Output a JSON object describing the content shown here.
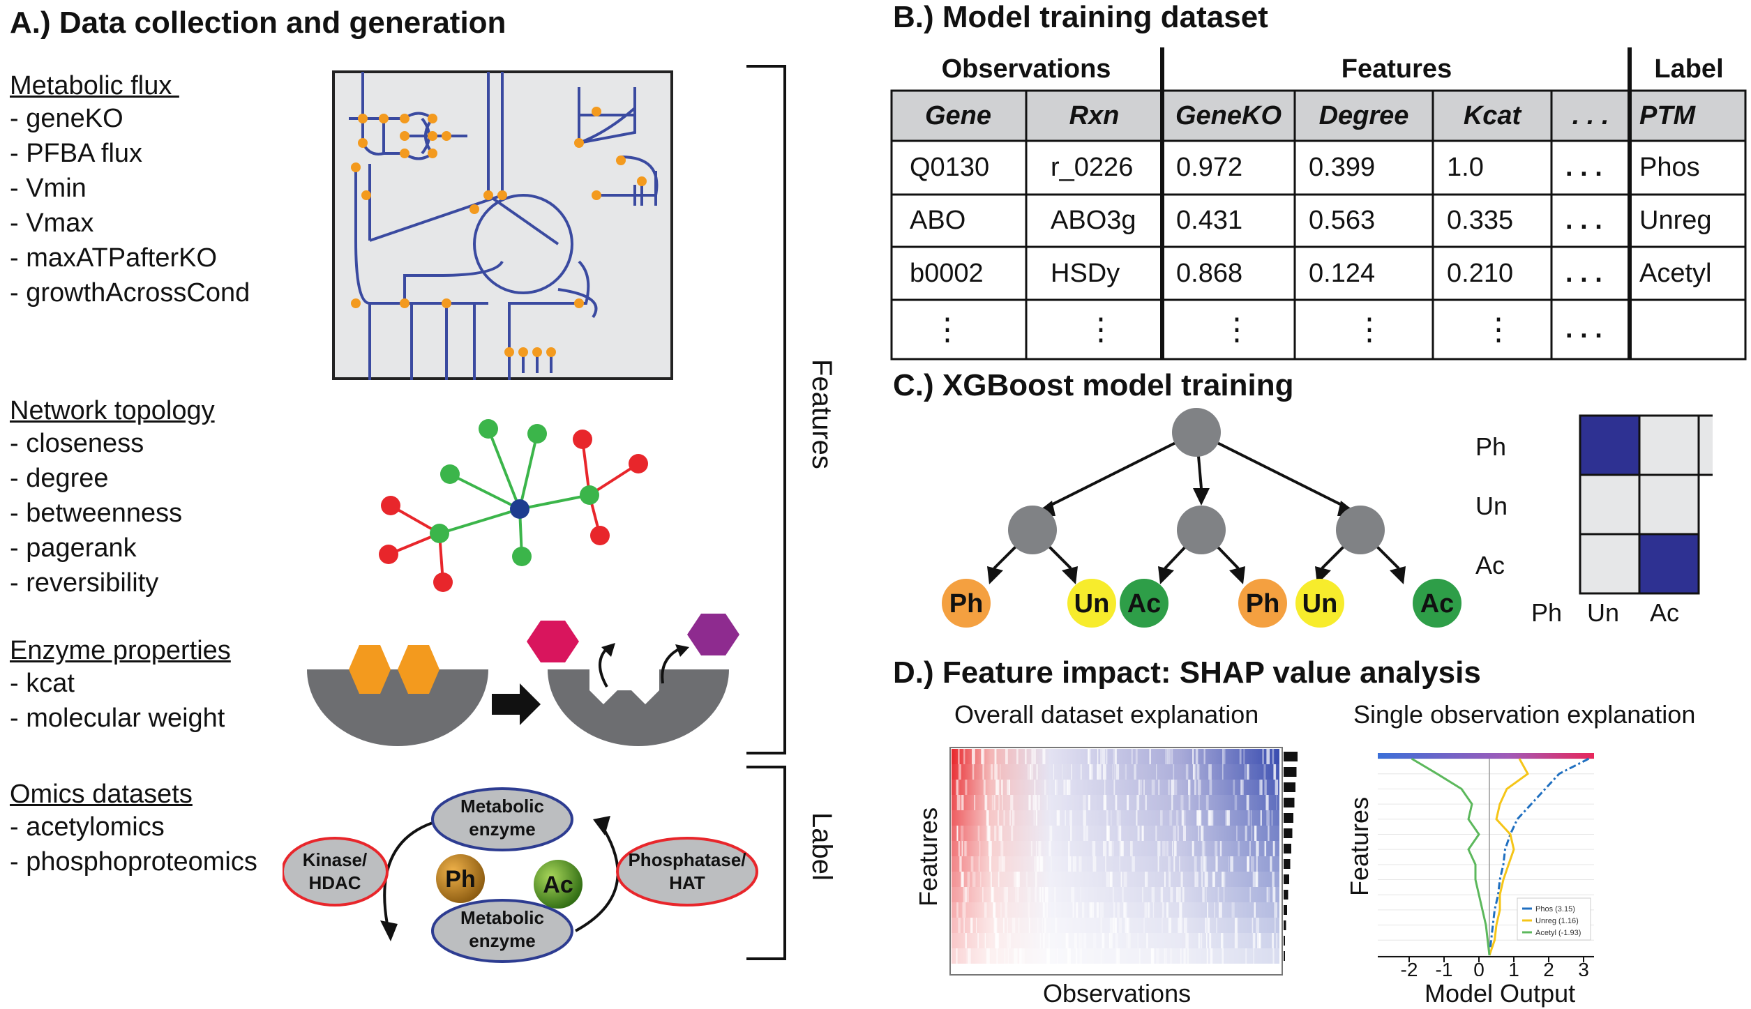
{
  "panel_a": {
    "title": "A.) Data collection and generation",
    "sections": [
      {
        "heading": "Metabolic flux ",
        "items": [
          "- geneKO",
          "- PFBA flux",
          "- Vmin",
          "- Vmax",
          "- maxATPafterKO",
          "- growthAcrossCond"
        ]
      },
      {
        "heading": "Network topology",
        "items": [
          "- closeness",
          "- degree",
          "- betweenness",
          "- pagerank",
          "- reversibility"
        ]
      },
      {
        "heading": "Enzyme properties",
        "items": [
          "- kcat",
          "- molecular weight"
        ]
      },
      {
        "heading": "Omics datasets",
        "items": [
          "- acetylomics",
          "- phosphoproteomics"
        ]
      }
    ],
    "bracket_features": "Features",
    "bracket_label": "Label",
    "cycle": {
      "enzyme_top": [
        "Metabolic",
        "enzyme"
      ],
      "enzyme_bottom": [
        "Metabolic",
        "enzyme"
      ],
      "left": [
        "Kinase/",
        "HDAC"
      ],
      "right": [
        "Phosphatase/",
        "HAT"
      ],
      "ph": "Ph",
      "ac": "Ac"
    }
  },
  "panel_b": {
    "title": "B.) Model training dataset",
    "groups": [
      "Observations",
      "Features",
      "Label"
    ],
    "columns": [
      "Gene",
      "Rxn",
      "GeneKO",
      "Degree",
      "Kcat",
      ". . .",
      "PTM"
    ],
    "rows": [
      [
        "Q0130",
        "r_0226",
        "0.972",
        "0.399",
        "1.0",
        ". . .",
        "Phos"
      ],
      [
        "ABO",
        "ABO3g",
        "0.431",
        "0.563",
        "0.335",
        ". . .",
        "Unreg"
      ],
      [
        "b0002",
        "HSDy",
        "0.868",
        "0.124",
        "0.210",
        ". . .",
        "Acetyl"
      ],
      [
        "⋮",
        "⋮",
        "⋮",
        "⋮",
        "⋮",
        ". . .",
        ""
      ]
    ]
  },
  "panel_c": {
    "title": "C.) XGBoost model training",
    "leaves": [
      "Ph",
      "Un",
      "Ac",
      "Ph",
      "Un",
      "Ac"
    ],
    "matrix_rows": [
      "Ph",
      "Un",
      "Ac"
    ],
    "matrix_cols": [
      "Ph",
      "Un",
      "Ac"
    ]
  },
  "panel_d": {
    "title": "D.) Feature impact: SHAP value analysis",
    "left_caption": "Overall dataset explanation",
    "right_caption": "Single observation explanation",
    "left_ylabel": "Features",
    "left_xlabel": "Observations",
    "right_ylabel": "Features",
    "right_xlabel": "Model Output",
    "legend": [
      "Phos (3.15)",
      "Unreg (1.16)",
      "Acetyl (-1.93)"
    ]
  },
  "chart_data": {
    "type": "line",
    "x_ticks": [
      "-2",
      "-1",
      "0",
      "1",
      "2",
      "3"
    ],
    "xlabel": "Model Output",
    "ylabel": "Features",
    "xlim": [
      -2.9,
      3.3
    ],
    "baseline": 0.3,
    "series": [
      {
        "name": "Phos (3.15)",
        "color": "#1f6fc0",
        "x": [
          3.15,
          2.3,
          1.9,
          1.5,
          1.1,
          0.9,
          0.75,
          0.7,
          0.6,
          0.55,
          0.45,
          0.4,
          0.35,
          0.3
        ]
      },
      {
        "name": "Unreg (1.16)",
        "color": "#f5c518",
        "x": [
          1.16,
          1.4,
          0.8,
          0.6,
          0.5,
          0.9,
          1.0,
          0.85,
          0.7,
          0.6,
          0.6,
          0.5,
          0.45,
          0.3
        ]
      },
      {
        "name": "Acetyl (-1.93)",
        "color": "#5cb85c",
        "x": [
          -1.93,
          -1.2,
          -0.5,
          -0.2,
          -0.3,
          0.0,
          -0.3,
          -0.1,
          -0.1,
          0.0,
          0.1,
          0.2,
          0.25,
          0.3
        ]
      }
    ]
  }
}
